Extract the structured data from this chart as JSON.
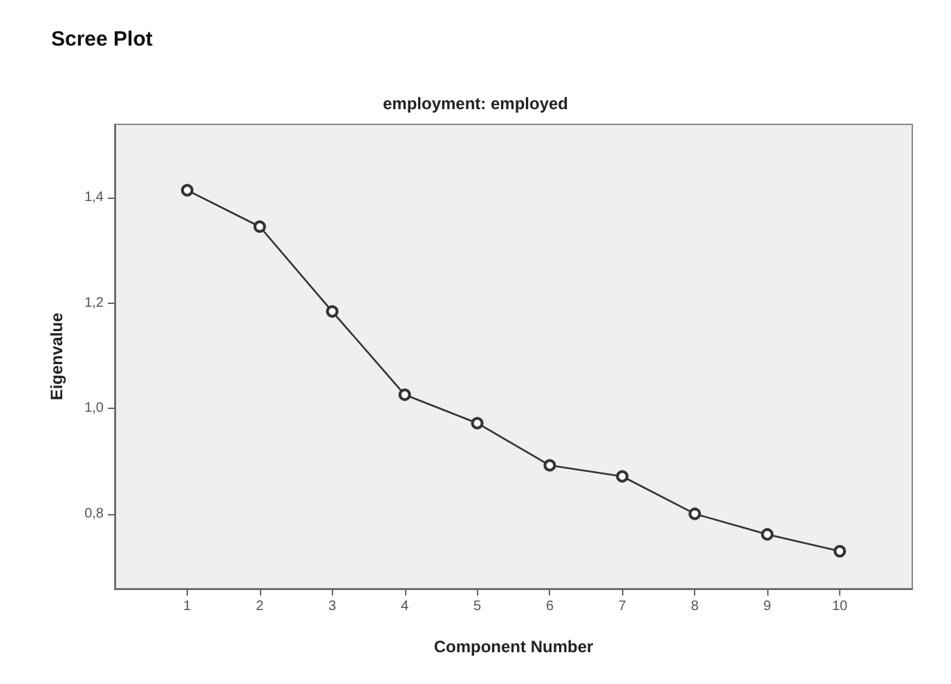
{
  "chart_data": {
    "type": "line",
    "title": "Scree Plot",
    "subtitle": "employment: employed",
    "xlabel": "Component Number",
    "ylabel": "Eigenvalue",
    "x": [
      1,
      2,
      3,
      4,
      5,
      6,
      7,
      8,
      9,
      10
    ],
    "series": [
      {
        "color": "#333333",
        "values": [
          1.414,
          1.345,
          1.184,
          1.026,
          0.972,
          0.892,
          0.871,
          0.8,
          0.761,
          0.729
        ]
      }
    ],
    "xlim": [
      0,
      11
    ],
    "xticks": [
      1,
      2,
      3,
      4,
      5,
      6,
      7,
      8,
      9,
      10
    ],
    "ylim": [
      0.658,
      1.539
    ],
    "yticks": [
      {
        "value": 0.8,
        "label": "0,8"
      },
      {
        "value": 1.0,
        "label": "1,0"
      },
      {
        "value": 1.2,
        "label": "1,2"
      },
      {
        "value": 1.4,
        "label": "1,4"
      }
    ],
    "grid": false,
    "marker": "circle",
    "line_style": "solid"
  }
}
